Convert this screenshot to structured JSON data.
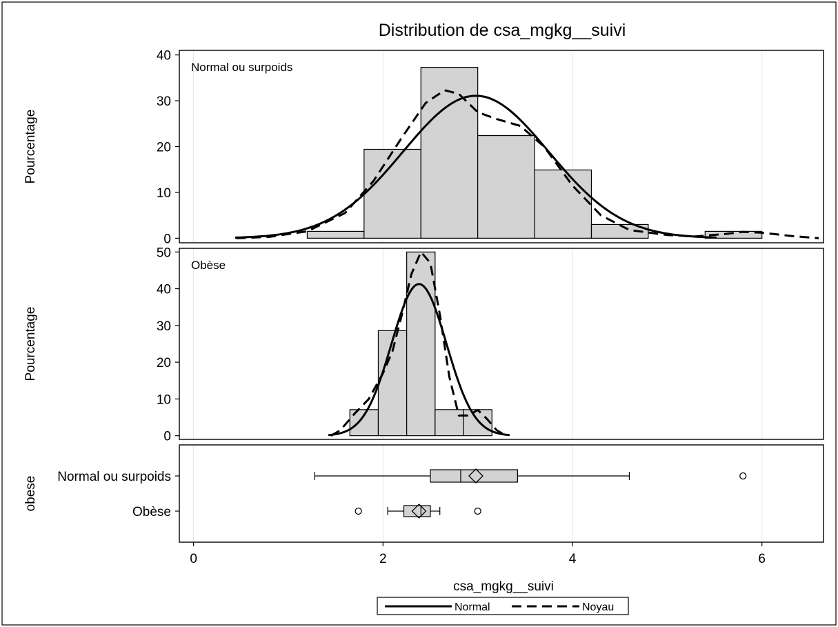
{
  "chart_data": {
    "type": "histogram",
    "title": "Distribution de csa_mgkg__suivi",
    "xlabel": "csa_mgkg__suivi",
    "x_range": [
      -0.15,
      6.65
    ],
    "x_ticks": [
      0,
      2,
      4,
      6
    ],
    "grid": true,
    "legend": {
      "placement": "bottom-center",
      "entries": [
        {
          "label": "Normal",
          "style": "solid"
        },
        {
          "label": "Noyau",
          "style": "dashed"
        }
      ]
    },
    "panels": [
      {
        "label": "Normal ou surpoids",
        "ylabel": "Pourcentage",
        "y_range": [
          -1,
          41
        ],
        "y_ticks": [
          0,
          10,
          20,
          30,
          40
        ],
        "bin_edges": [
          1.2,
          1.8,
          2.4,
          3.0,
          3.6,
          4.2,
          4.8,
          5.4,
          6.0
        ],
        "bin_values": [
          1.5,
          19.4,
          37.3,
          22.4,
          14.9,
          3.0,
          0,
          1.5
        ],
        "normal_curve": {
          "mean": 2.98,
          "sd": 0.77,
          "bin_width": 0.6
        },
        "kernel_curve": [
          [
            0.45,
            0
          ],
          [
            0.8,
            0.3
          ],
          [
            1.2,
            1.5
          ],
          [
            1.6,
            5.5
          ],
          [
            1.9,
            12.5
          ],
          [
            2.2,
            22
          ],
          [
            2.45,
            29.5
          ],
          [
            2.65,
            32.3
          ],
          [
            2.8,
            31.5
          ],
          [
            3.0,
            27.5
          ],
          [
            3.2,
            26
          ],
          [
            3.45,
            24.5
          ],
          [
            3.7,
            20
          ],
          [
            4.0,
            11.5
          ],
          [
            4.3,
            5
          ],
          [
            4.6,
            1.8
          ],
          [
            5.0,
            0.7
          ],
          [
            5.3,
            0.4
          ],
          [
            5.6,
            0.9
          ],
          [
            5.8,
            1.4
          ],
          [
            6.0,
            1.2
          ],
          [
            6.3,
            0.5
          ],
          [
            6.6,
            0
          ]
        ]
      },
      {
        "label": "Obèse",
        "ylabel": "Pourcentage",
        "y_range": [
          -1,
          51
        ],
        "y_ticks": [
          0,
          10,
          20,
          30,
          40,
          50
        ],
        "bin_edges": [
          1.65,
          1.95,
          2.25,
          2.55,
          2.85,
          3.15
        ],
        "bin_values": [
          7.1,
          28.6,
          50.0,
          7.1,
          7.1
        ],
        "normal_curve": {
          "mean": 2.38,
          "sd": 0.29,
          "bin_width": 0.3
        },
        "kernel_curve": [
          [
            1.45,
            0
          ],
          [
            1.55,
            1.5
          ],
          [
            1.7,
            6
          ],
          [
            1.85,
            10
          ],
          [
            2.0,
            17
          ],
          [
            2.1,
            23
          ],
          [
            2.2,
            33
          ],
          [
            2.3,
            44
          ],
          [
            2.4,
            50
          ],
          [
            2.5,
            47
          ],
          [
            2.6,
            33
          ],
          [
            2.7,
            16
          ],
          [
            2.8,
            5.5
          ],
          [
            2.9,
            5.5
          ],
          [
            3.0,
            7
          ],
          [
            3.1,
            4.5
          ],
          [
            3.2,
            1.5
          ],
          [
            3.3,
            0
          ]
        ]
      }
    ],
    "boxplot": {
      "ylabel": "obese",
      "groups": [
        {
          "name": "Normal ou surpoids",
          "whisker_low": 1.28,
          "q1": 2.5,
          "median": 2.82,
          "q3": 3.42,
          "whisker_high": 4.6,
          "mean": 2.98,
          "outliers": [
            5.8
          ]
        },
        {
          "name": "Obèse",
          "whisker_low": 2.05,
          "q1": 2.22,
          "median": 2.4,
          "q3": 2.5,
          "whisker_high": 2.6,
          "mean": 2.38,
          "outliers": [
            1.74,
            3.0
          ]
        }
      ]
    }
  }
}
